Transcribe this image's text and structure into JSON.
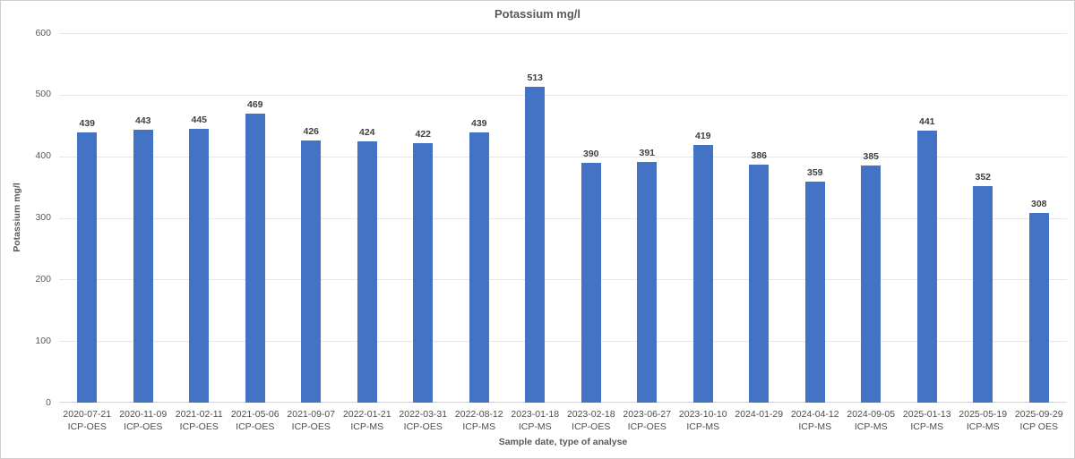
{
  "chart": {
    "title": "Potassium mg/l",
    "y_axis_title": "Potassium mg/l",
    "x_axis_title": "Sample date, type of analyse"
  },
  "chart_data": {
    "type": "bar",
    "title": "Potassium mg/l",
    "xlabel": "Sample date, type of analyse",
    "ylabel": "Potassium mg/l",
    "ylim": [
      0,
      600
    ],
    "yticks": [
      0,
      100,
      200,
      300,
      400,
      500,
      600
    ],
    "grid": true,
    "legend": false,
    "bar_color": "#4472C4",
    "categories": [
      {
        "date": "2020-07-21",
        "method": "ICP-OES"
      },
      {
        "date": "2020-11-09",
        "method": "ICP-OES"
      },
      {
        "date": "2021-02-11",
        "method": "ICP-OES"
      },
      {
        "date": "2021-05-06",
        "method": "ICP-OES"
      },
      {
        "date": "2021-09-07",
        "method": "ICP-OES"
      },
      {
        "date": "2022-01-21",
        "method": "ICP-MS"
      },
      {
        "date": "2022-03-31",
        "method": "ICP-OES"
      },
      {
        "date": "2022-08-12",
        "method": "ICP-MS"
      },
      {
        "date": "2023-01-18",
        "method": "ICP-MS"
      },
      {
        "date": "2023-02-18",
        "method": "ICP-OES"
      },
      {
        "date": "2023-06-27",
        "method": "ICP-OES"
      },
      {
        "date": "2023-10-10",
        "method": "ICP-MS"
      },
      {
        "date": "2024-01-29",
        "method": ""
      },
      {
        "date": "2024-04-12",
        "method": "ICP-MS"
      },
      {
        "date": "2024-09-05",
        "method": "ICP-MS"
      },
      {
        "date": "2025-01-13",
        "method": "ICP-MS"
      },
      {
        "date": "2025-05-19",
        "method": "ICP-MS"
      },
      {
        "date": "2025-09-29",
        "method": "ICP OES"
      }
    ],
    "values": [
      439,
      443,
      445,
      469,
      426,
      424,
      422,
      439,
      513,
      390,
      391,
      419,
      386,
      359,
      385,
      441,
      352,
      308
    ]
  }
}
